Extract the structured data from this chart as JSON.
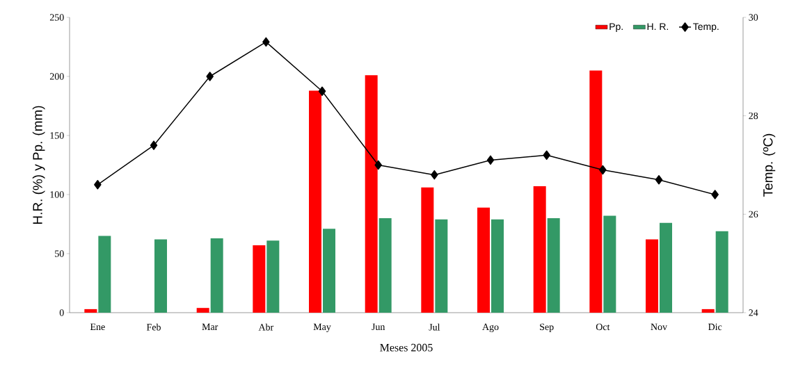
{
  "chart_data": {
    "type": "bar",
    "categories": [
      "Ene",
      "Feb",
      "Mar",
      "Abr",
      "May",
      "Jun",
      "Jul",
      "Ago",
      "Sep",
      "Oct",
      "Nov",
      "Dic"
    ],
    "series": [
      {
        "name": "Pp.",
        "color": "#ff0000",
        "values": [
          3,
          0,
          4,
          57,
          188,
          201,
          106,
          89,
          107,
          205,
          62,
          3
        ]
      },
      {
        "name": "H. R.",
        "color": "#339966",
        "values": [
          65,
          62,
          63,
          61,
          71,
          80,
          79,
          79,
          80,
          82,
          76,
          69
        ]
      },
      {
        "name": "Temp.",
        "type": "line",
        "axis": "y2",
        "color": "#000000",
        "marker": "diamond",
        "line_style": "solid",
        "values": [
          26.6,
          27.4,
          28.8,
          29.5,
          28.5,
          27.0,
          26.8,
          27.1,
          27.2,
          26.9,
          26.7,
          26.4
        ]
      }
    ],
    "xlabel": "Meses 2005",
    "ylabel": "H.R. (%) y Pp. (mm)",
    "y2label": "Temp. (ºC)",
    "ylim": [
      0,
      250
    ],
    "yticks": [
      0,
      50,
      100,
      150,
      200,
      250
    ],
    "y2lim": [
      24,
      30
    ],
    "y2ticks": [
      24,
      26,
      28,
      30
    ],
    "legend": "top right"
  }
}
